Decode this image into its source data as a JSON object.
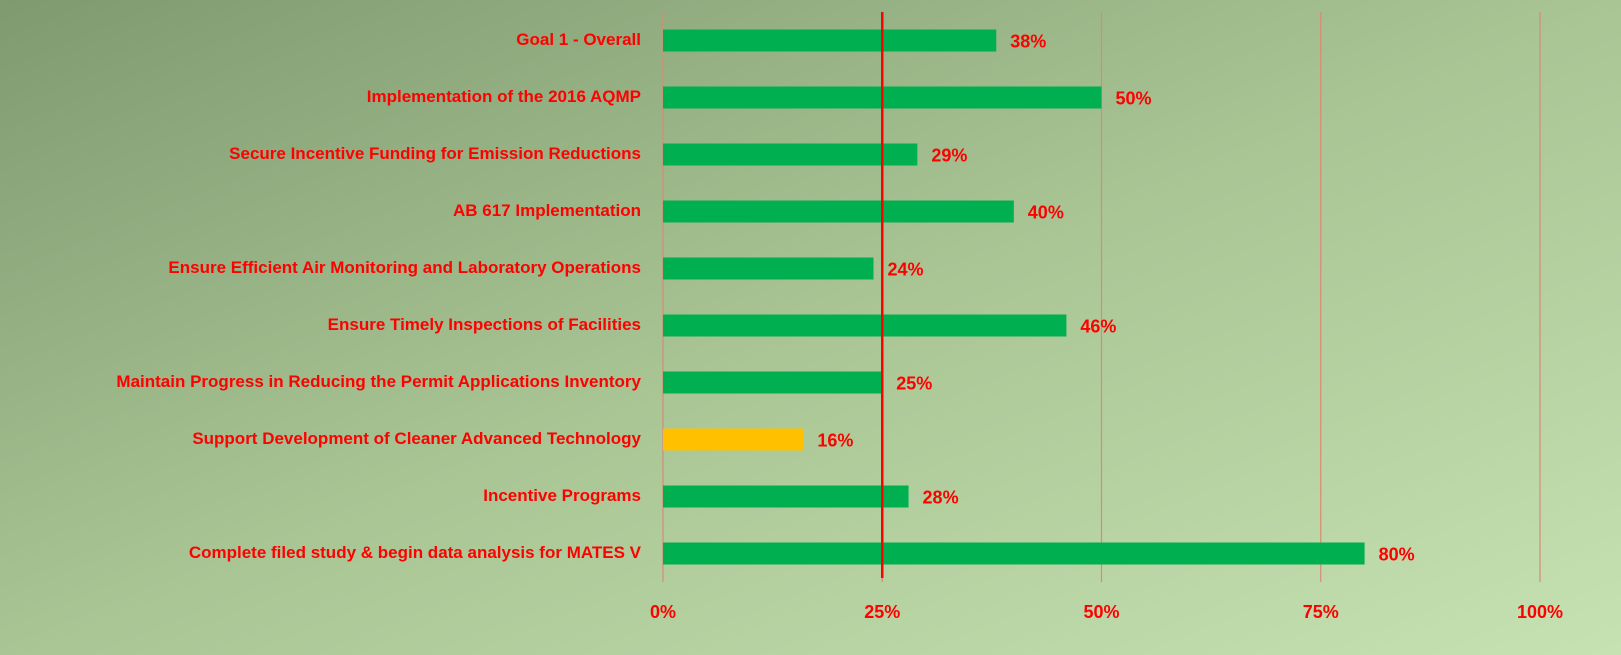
{
  "chart_data": {
    "type": "hbar",
    "categories": [
      "Goal 1 - Overall",
      "Implementation of the 2016 AQMP",
      "Secure Incentive Funding for Emission Reductions",
      "AB 617 Implementation",
      "Ensure Efficient Air Monitoring and Laboratory Operations",
      "Ensure Timely Inspections of Facilities",
      "Maintain Progress in Reducing the Permit Applications Inventory",
      "Support Development of Cleaner Advanced Technology",
      "Incentive Programs",
      "Complete filed study & begin data analysis for MATES V"
    ],
    "values": [
      38,
      50,
      29,
      40,
      24,
      46,
      25,
      16,
      28,
      80
    ],
    "value_labels": [
      "38%",
      "50%",
      "29%",
      "40%",
      "24%",
      "46%",
      "25%",
      "16%",
      "28%",
      "80%"
    ],
    "colors": [
      "#00b050",
      "#00b050",
      "#00b050",
      "#00b050",
      "#00b050",
      "#00b050",
      "#00b050",
      "#ffc000",
      "#00b050",
      "#00b050"
    ],
    "xlim": [
      0,
      100
    ],
    "xticks": [
      {
        "value": 0,
        "label": "0%"
      },
      {
        "value": 25,
        "label": "25%"
      },
      {
        "value": 50,
        "label": "50%"
      },
      {
        "value": 75,
        "label": "75%"
      },
      {
        "value": 100,
        "label": "100%"
      }
    ],
    "grid": true,
    "reference_line": {
      "value": 25,
      "color": "#ff0000"
    }
  }
}
